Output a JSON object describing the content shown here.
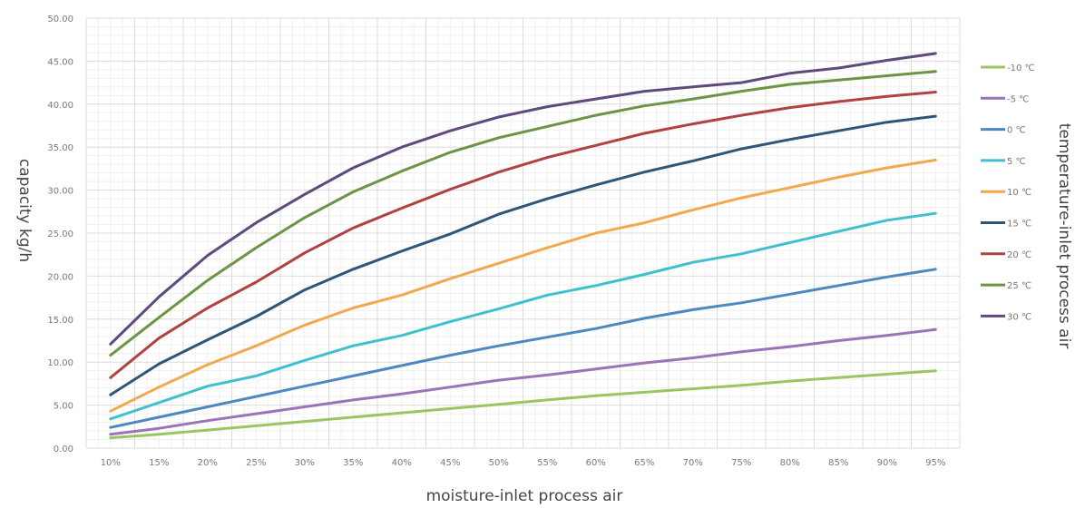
{
  "chart_data": {
    "type": "line",
    "title": "",
    "xlabel": "moisture-inlet process air",
    "ylabel": "capacity kg/h",
    "legend_title": "temperature-inlet process air",
    "legend_position": "right",
    "grid": true,
    "ylim": [
      0,
      50
    ],
    "yticks": [
      "0.00",
      "5.00",
      "10.00",
      "15.00",
      "20.00",
      "25.00",
      "30.00",
      "35.00",
      "40.00",
      "45.00",
      "50.00"
    ],
    "categories": [
      "10%",
      "15%",
      "20%",
      "25%",
      "30%",
      "35%",
      "40%",
      "45%",
      "50%",
      "55%",
      "60%",
      "65%",
      "70%",
      "75%",
      "80%",
      "85%",
      "90%",
      "95%"
    ],
    "series": [
      {
        "name": "-10 ℃",
        "color": "#9bc560",
        "values": [
          1.2,
          1.6,
          2.1,
          2.6,
          3.1,
          3.6,
          4.1,
          4.6,
          5.1,
          5.6,
          6.1,
          6.5,
          6.9,
          7.3,
          7.8,
          8.2,
          8.6,
          9.0
        ]
      },
      {
        "name": "-5 ℃",
        "color": "#9b73b8",
        "values": [
          1.6,
          2.3,
          3.2,
          4.0,
          4.8,
          5.6,
          6.3,
          7.1,
          7.9,
          8.5,
          9.2,
          9.9,
          10.5,
          11.2,
          11.8,
          12.5,
          13.1,
          13.8
        ]
      },
      {
        "name": "0 ℃",
        "color": "#4e88c0",
        "values": [
          2.4,
          3.6,
          4.8,
          6.0,
          7.2,
          8.4,
          9.6,
          10.8,
          11.9,
          12.9,
          13.9,
          15.1,
          16.1,
          16.9,
          17.9,
          18.9,
          19.9,
          20.8
        ]
      },
      {
        "name": "5 ℃",
        "color": "#40c0cf",
        "values": [
          3.4,
          5.3,
          7.2,
          8.4,
          10.2,
          11.9,
          13.1,
          14.7,
          16.2,
          17.8,
          18.9,
          20.2,
          21.6,
          22.6,
          23.9,
          25.2,
          26.5,
          27.3
        ]
      },
      {
        "name": "10 ℃",
        "color": "#f0a94c",
        "values": [
          4.3,
          7.1,
          9.7,
          11.9,
          14.3,
          16.3,
          17.8,
          19.7,
          21.5,
          23.3,
          25.0,
          26.2,
          27.7,
          29.1,
          30.3,
          31.5,
          32.6,
          33.5
        ]
      },
      {
        "name": "15 ℃",
        "color": "#2f5579",
        "values": [
          6.2,
          9.8,
          12.6,
          15.3,
          18.4,
          20.8,
          22.9,
          24.9,
          27.2,
          29.0,
          30.6,
          32.1,
          33.4,
          34.8,
          35.9,
          36.9,
          37.9,
          38.6
        ]
      },
      {
        "name": "20 ℃",
        "color": "#b04242",
        "values": [
          8.2,
          12.8,
          16.3,
          19.3,
          22.7,
          25.6,
          27.9,
          30.1,
          32.1,
          33.8,
          35.2,
          36.6,
          37.7,
          38.7,
          39.6,
          40.3,
          40.9,
          41.4
        ]
      },
      {
        "name": "25 ℃",
        "color": "#6b9444",
        "values": [
          10.8,
          15.2,
          19.5,
          23.3,
          26.8,
          29.8,
          32.2,
          34.4,
          36.1,
          37.4,
          38.7,
          39.8,
          40.6,
          41.5,
          42.3,
          42.8,
          43.3,
          43.8
        ]
      },
      {
        "name": "30 ℃",
        "color": "#5e4a7c",
        "values": [
          12.1,
          17.6,
          22.4,
          26.2,
          29.5,
          32.6,
          35.0,
          36.9,
          38.5,
          39.7,
          40.6,
          41.5,
          42.0,
          42.5,
          43.6,
          44.2,
          45.1,
          45.9
        ]
      }
    ]
  }
}
